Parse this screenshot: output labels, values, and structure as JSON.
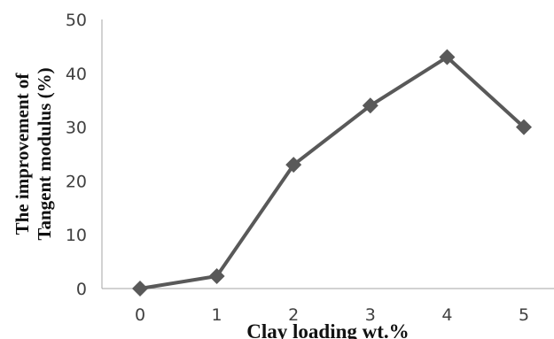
{
  "chart_data": {
    "type": "line",
    "title": "",
    "xlabel": "Clay loading wt.%",
    "ylabel_lines": [
      "The improvement of",
      "Tangent modulus (%)"
    ],
    "x": [
      0,
      1,
      2,
      3,
      4,
      5
    ],
    "x_tick_labels": [
      "0",
      "1",
      "2",
      "3",
      "4",
      "5"
    ],
    "y_tick_labels": [
      "0",
      "10",
      "20",
      "30",
      "40",
      "50"
    ],
    "ylim": [
      0,
      50
    ],
    "series": [
      {
        "values": [
          0,
          2.3,
          23,
          34,
          43,
          30
        ]
      }
    ],
    "marker": "diamond",
    "grid": false,
    "legend": "none",
    "colors": {
      "line": "#595959",
      "marker": "#595959",
      "axis": "#a6a6a6",
      "text": "#404040"
    }
  }
}
